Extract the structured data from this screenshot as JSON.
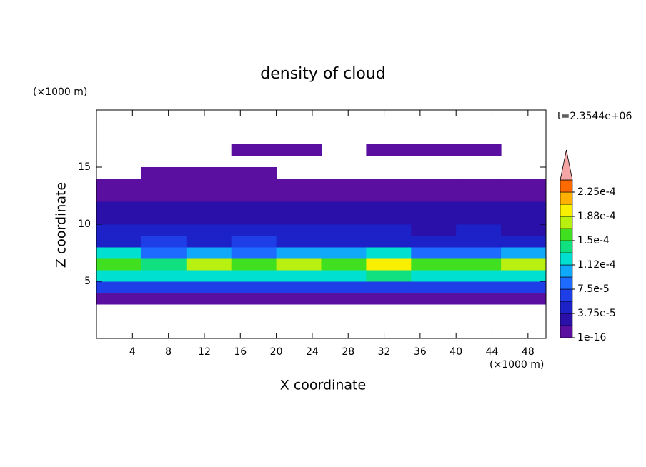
{
  "chart_data": {
    "type": "contour",
    "title": "density of cloud",
    "xlabel": "X coordinate",
    "ylabel": "Z coordinate",
    "xunit": "(×1000 m)",
    "yunit": "(×1000 m)",
    "time_label": "t=2.3544e+06",
    "xlim": [
      0,
      50
    ],
    "ylim": [
      0,
      20
    ],
    "xticks": [
      4,
      8,
      12,
      16,
      20,
      24,
      28,
      32,
      36,
      40,
      44,
      48
    ],
    "yticks": [
      5,
      10,
      15
    ],
    "x": [
      0,
      5,
      10,
      15,
      20,
      25,
      30,
      35,
      40,
      45
    ],
    "z": [
      3,
      4,
      5,
      6,
      7,
      8,
      9,
      10,
      11,
      12,
      13,
      14,
      15,
      16
    ],
    "cell_width": 5,
    "cell_height": 1,
    "values": [
      [
        1e-05,
        1e-05,
        1e-05,
        1e-05,
        1e-05,
        1e-05,
        1e-05,
        1e-05,
        1e-05,
        1e-05
      ],
      [
        6e-05,
        6e-05,
        6e-05,
        6e-05,
        6e-05,
        6e-05,
        6e-05,
        6e-05,
        6e-05,
        6e-05
      ],
      [
        0.00013,
        0.00012,
        0.00013,
        0.00012,
        0.00013,
        0.00012,
        0.000135,
        0.00012,
        0.00012,
        0.00013
      ],
      [
        0.00016,
        0.00014,
        0.00017,
        0.00015,
        0.00017,
        0.00016,
        0.00019,
        0.00016,
        0.00015,
        0.00017
      ],
      [
        0.00012,
        9e-05,
        0.00011,
        9e-05,
        0.0001,
        0.0001,
        0.00012,
        9e-05,
        8e-05,
        0.0001
      ],
      [
        5e-05,
        6e-05,
        5e-05,
        6e-05,
        5e-05,
        5e-05,
        5e-05,
        4e-05,
        5e-05,
        4e-05
      ],
      [
        4e-05,
        5e-05,
        4e-05,
        5e-05,
        4e-05,
        4e-05,
        4e-05,
        3e-05,
        4e-05,
        3e-05
      ],
      [
        3e-05,
        3e-05,
        3e-05,
        3e-05,
        3e-05,
        3e-05,
        2.5e-05,
        2.5e-05,
        3e-05,
        2.5e-05
      ],
      [
        2e-05,
        2e-05,
        2e-05,
        2e-05,
        2e-05,
        2e-05,
        2e-05,
        2e-05,
        2e-05,
        2e-05
      ],
      [
        1e-05,
        1e-05,
        1e-05,
        1e-05,
        1e-05,
        1e-05,
        1e-05,
        1e-05,
        1e-05,
        1e-05
      ],
      [
        1e-05,
        1e-05,
        1e-05,
        1e-05,
        1e-05,
        1e-05,
        1e-05,
        1e-05,
        1e-05,
        1e-05
      ],
      [
        0,
        1e-05,
        1e-05,
        1e-05,
        0,
        0,
        0,
        0,
        0,
        0
      ],
      [
        0,
        0,
        0,
        0,
        0,
        0,
        0,
        0,
        0,
        0
      ],
      [
        0,
        0,
        0,
        1e-05,
        1e-05,
        0,
        1e-05,
        1e-05,
        1e-05,
        0
      ]
    ],
    "levels": [
      1e-16,
      1.875e-05,
      3.75e-05,
      5.625e-05,
      7.5e-05,
      9.375e-05,
      0.0001125,
      0.00013125,
      0.00015,
      0.00016875,
      0.0001875,
      0.00020625,
      0.000225,
      0.00024375
    ],
    "colors": [
      "#5a0fa0",
      "#2a0fa8",
      "#1c22c8",
      "#1e3ee8",
      "#1e6cff",
      "#10a8f8",
      "#00e0d0",
      "#10e080",
      "#40e020",
      "#b8f010",
      "#f8f000",
      "#ffb000",
      "#ff6a00",
      "#f02020"
    ],
    "extend_color": "#f4a6a6",
    "colorbar_ticks": [
      {
        "value": 1e-16,
        "label": "1e-16"
      },
      {
        "value": 3.75e-05,
        "label": "3.75e-5"
      },
      {
        "value": 7.5e-05,
        "label": "7.5e-5"
      },
      {
        "value": 0.0001125,
        "label": "1.12e-4"
      },
      {
        "value": 0.00015,
        "label": "1.5e-4"
      },
      {
        "value": 0.0001875,
        "label": "1.88e-4"
      },
      {
        "value": 0.000225,
        "label": "2.25e-4"
      }
    ]
  }
}
